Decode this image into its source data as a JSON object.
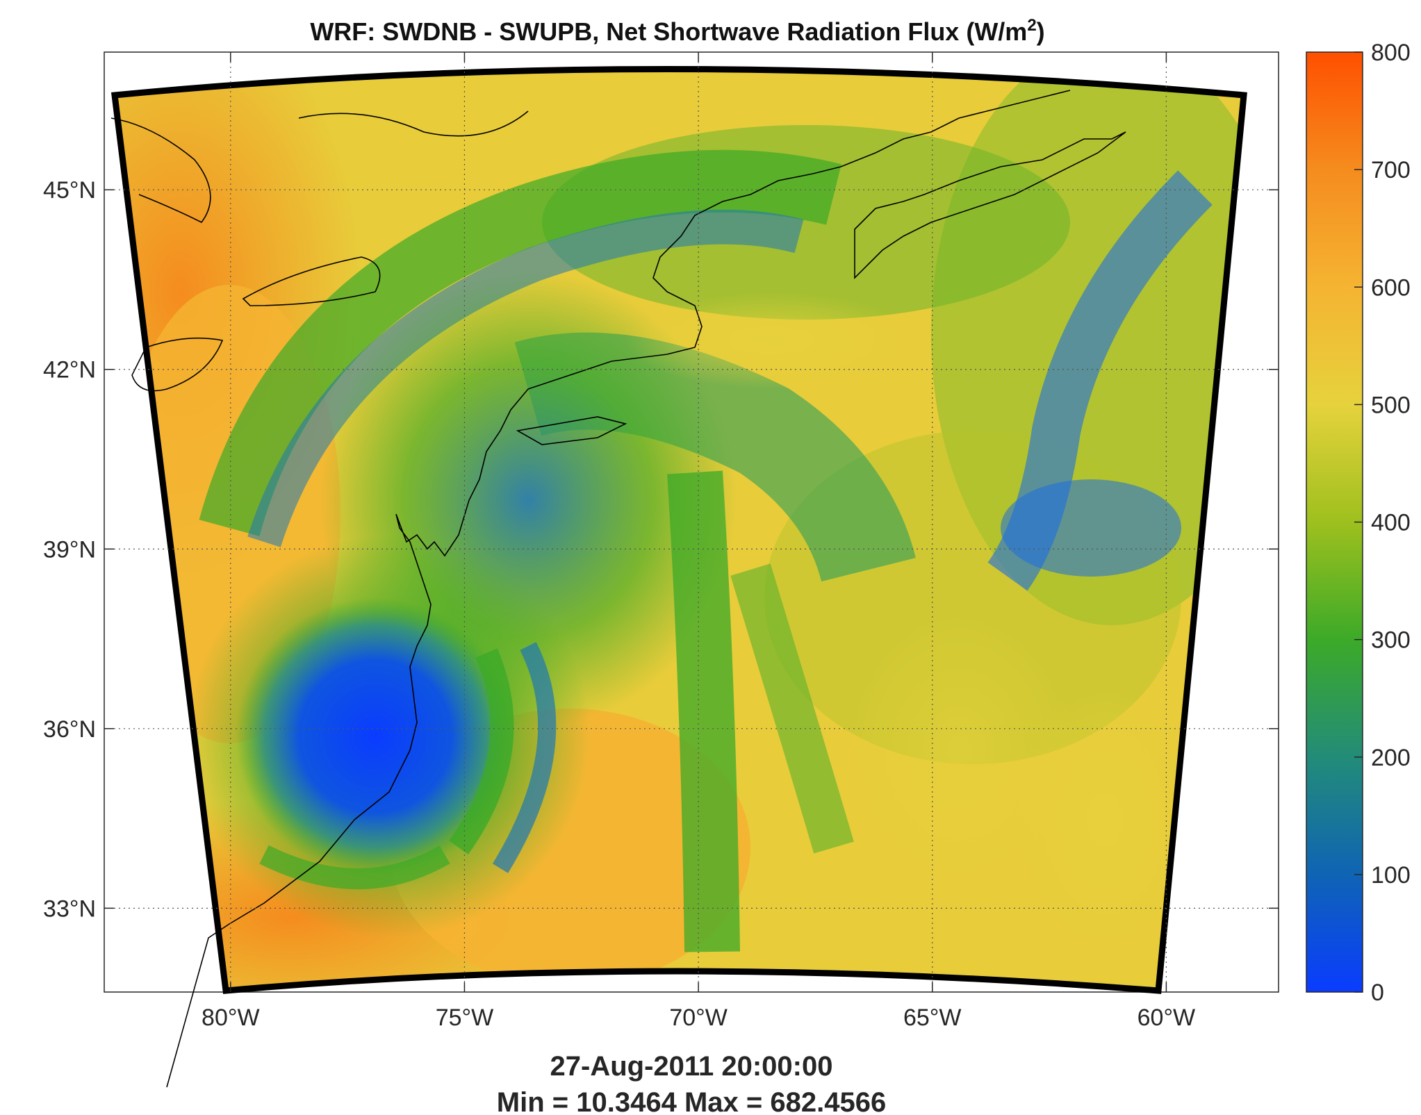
{
  "title": {
    "prefix": "WRF: SWDNB - SWUPB, Net Shortwave Radiation Flux (W/m",
    "superscript": "2",
    "suffix": ")"
  },
  "footer": {
    "timestamp": "27-Aug-2011 20:00:00",
    "stats": "Min = 10.3464  Max = 682.4566"
  },
  "map": {
    "lat_labels": [
      "45°N",
      "42°N",
      "39°N",
      "36°N",
      "33°N"
    ],
    "lat_values": [
      45,
      42,
      39,
      36,
      33
    ],
    "lon_labels": [
      "80°W",
      "75°W",
      "70°W",
      "65°W",
      "60°W"
    ],
    "lon_values": [
      -80,
      -75,
      -70,
      -65,
      -60
    ],
    "grid": true
  },
  "colorbar": {
    "labels": [
      "0",
      "100",
      "200",
      "300",
      "400",
      "500",
      "600",
      "700",
      "800"
    ],
    "values": [
      0,
      100,
      200,
      300,
      400,
      500,
      600,
      700,
      800
    ],
    "range": [
      0,
      800
    ],
    "colors": [
      "#0a3cff",
      "#0f64b4",
      "#238c78",
      "#3caa28",
      "#9ec01e",
      "#e6d23c",
      "#f5b432",
      "#f58c1e",
      "#ff5000"
    ]
  },
  "chart_data": {
    "type": "heatmap",
    "title": "WRF: SWDNB - SWUPB, Net Shortwave Radiation Flux (W/m2)",
    "xlabel": "",
    "ylabel": "",
    "x_ticks": [
      "80°W",
      "75°W",
      "70°W",
      "65°W",
      "60°W"
    ],
    "y_ticks": [
      "45°N",
      "42°N",
      "39°N",
      "36°N",
      "33°N"
    ],
    "xlim": [
      -82.7,
      -57.6
    ],
    "ylim": [
      31.6,
      47.3
    ],
    "colorbar_range": [
      0,
      800
    ],
    "min": 10.3464,
    "max": 682.4566,
    "timestamp": "27-Aug-2011 20:00:00",
    "grid": true,
    "legend": "colorbar-right"
  }
}
